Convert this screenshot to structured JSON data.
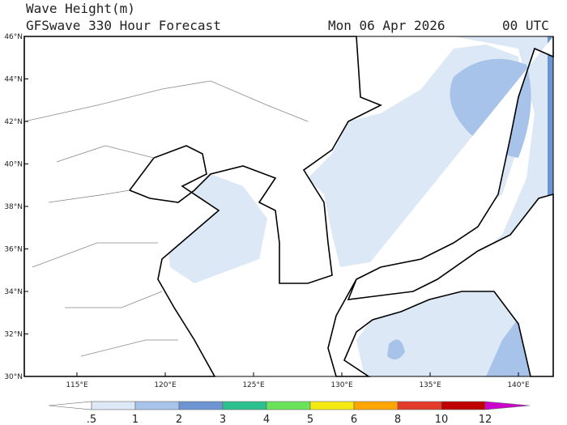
{
  "header": {
    "title": "Wave Height(m)",
    "subtitle": "GFSwave 330 Hour Forecast",
    "date": "Mon 06 Apr 2026",
    "time": "00 UTC"
  },
  "map": {
    "lat_labels": [
      "30°N",
      "32°N",
      "34°N",
      "36°N",
      "38°N",
      "40°N",
      "42°N",
      "44°N",
      "46°N"
    ],
    "lon_labels": [
      "115°E",
      "120°E",
      "125°E",
      "130°E",
      "135°E",
      "140°E"
    ]
  },
  "colorbar": {
    "labels": [
      ".5",
      "1",
      "2",
      "3",
      "4",
      "5",
      "6",
      "8",
      "10",
      "12"
    ],
    "colors": [
      "#ffffff",
      "#dce8f6",
      "#a8c3ea",
      "#6d95d2",
      "#2cc08e",
      "#6ae35a",
      "#f5ea10",
      "#ffa500",
      "#e33a2c",
      "#c00000",
      "#cc00cc"
    ]
  }
}
